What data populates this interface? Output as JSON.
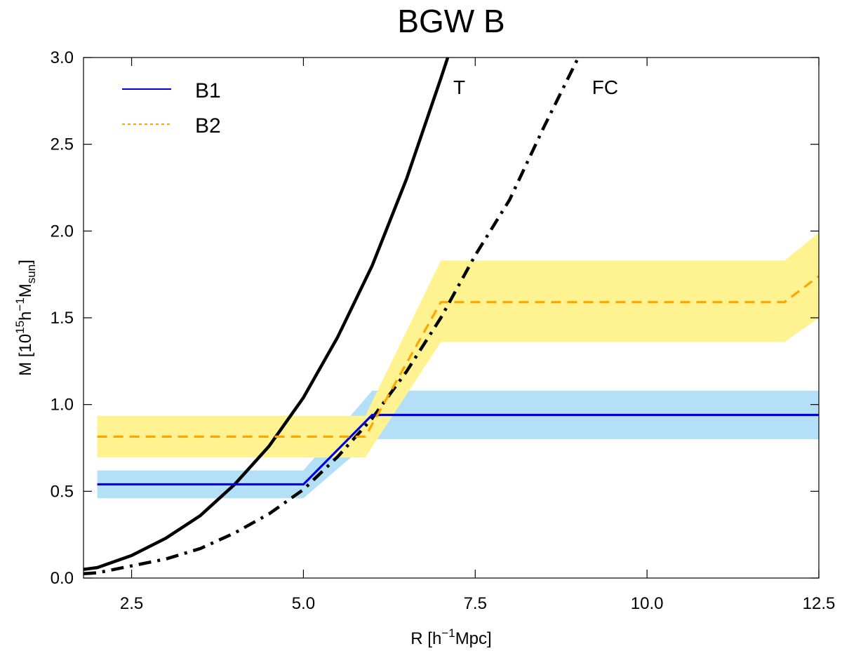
{
  "chart_data": {
    "type": "line",
    "title": "BGW B",
    "xlabel": {
      "main": "R [h",
      "sup": "−1",
      "rest": "Mpc]"
    },
    "ylabel": {
      "a": "M [10",
      "sup1": "15",
      "b": "h",
      "sup2": "−1",
      "c": "M",
      "sub": "sun",
      "d": "]"
    },
    "xlim": [
      1.8,
      12.5
    ],
    "ylim": [
      0.0,
      3.0
    ],
    "xticks": [
      2.5,
      5.0,
      7.5,
      10.0,
      12.5
    ],
    "xtick_labels": [
      "2.5",
      "5.0",
      "7.5",
      "10.0",
      "12.5"
    ],
    "yticks": [
      0.0,
      0.5,
      1.0,
      1.5,
      2.0,
      2.5,
      3.0
    ],
    "ytick_labels": [
      "0.0",
      "0.5",
      "1.0",
      "1.5",
      "2.0",
      "2.5",
      "3.0"
    ],
    "grid": false,
    "legend": {
      "position": "top-left",
      "entries": [
        "B1",
        "B2"
      ]
    },
    "series": [
      {
        "name": "B1",
        "color": "#0000dd",
        "dash": "solid",
        "x": [
          2.0,
          5.0,
          6.0,
          12.5
        ],
        "y": [
          0.54,
          0.54,
          0.94,
          0.94
        ],
        "band_color": "#b3e0f7",
        "band_lower": [
          0.46,
          0.46,
          0.8,
          0.8
        ],
        "band_upper": [
          0.62,
          0.62,
          1.08,
          1.08
        ]
      },
      {
        "name": "B2",
        "color": "#ffa500",
        "dash": "dashed",
        "x": [
          2.0,
          5.9,
          7.0,
          12.0,
          12.5
        ],
        "y": [
          0.815,
          0.815,
          1.59,
          1.59,
          1.74
        ],
        "band_color": "#fff391",
        "band_lower": [
          0.695,
          0.695,
          1.36,
          1.36,
          1.5
        ],
        "band_upper": [
          0.935,
          0.935,
          1.83,
          1.83,
          1.99
        ]
      }
    ],
    "curves": [
      {
        "label": "T",
        "color": "#000000",
        "dash": "solid",
        "x": [
          1.8,
          2.0,
          2.5,
          3.0,
          3.5,
          4.0,
          4.5,
          5.0,
          5.5,
          6.0,
          6.5,
          7.0,
          7.1
        ],
        "y": [
          0.05,
          0.06,
          0.13,
          0.23,
          0.36,
          0.54,
          0.76,
          1.04,
          1.39,
          1.8,
          2.3,
          2.88,
          3.0
        ]
      },
      {
        "label": "FC",
        "color": "#000000",
        "dash": "dashdot",
        "x": [
          1.8,
          2.0,
          2.5,
          3.0,
          3.5,
          4.0,
          4.5,
          5.0,
          5.5,
          6.0,
          6.5,
          7.0,
          7.5,
          8.0,
          8.5,
          9.0
        ],
        "y": [
          0.025,
          0.03,
          0.07,
          0.11,
          0.17,
          0.26,
          0.37,
          0.51,
          0.7,
          0.92,
          1.19,
          1.5,
          1.86,
          2.18,
          2.6,
          3.0
        ]
      }
    ],
    "annotations": [
      {
        "text": "T",
        "x": 7.18,
        "y": 2.79
      },
      {
        "text": "FC",
        "x": 9.2,
        "y": 2.79
      }
    ]
  }
}
